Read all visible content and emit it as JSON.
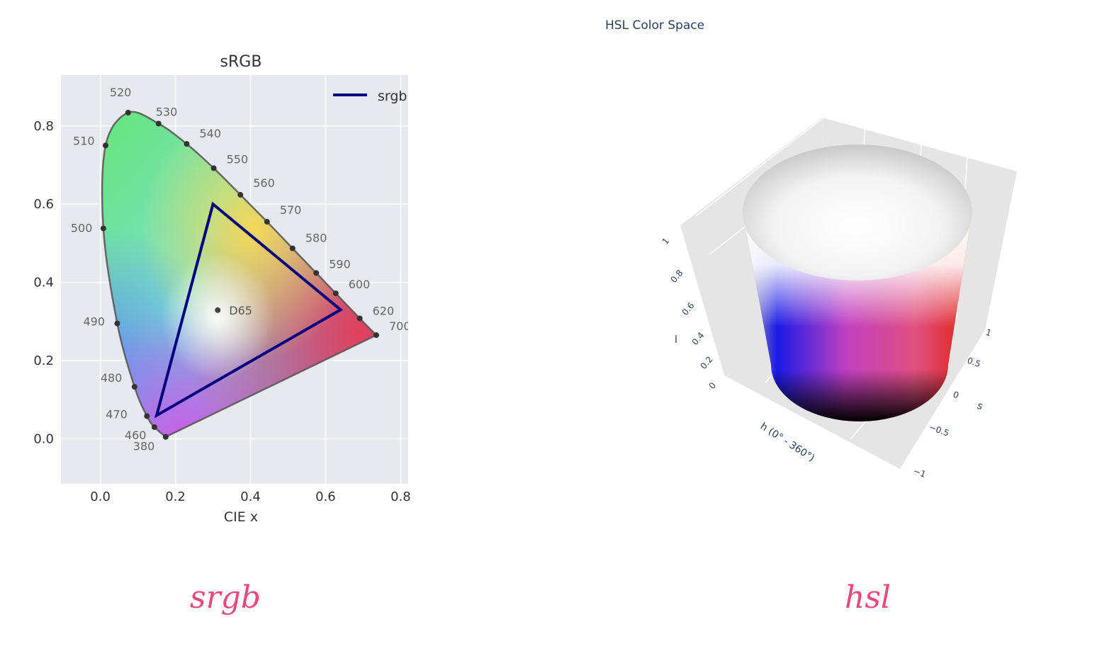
{
  "captions": {
    "left": "srgb",
    "right": "hsl"
  },
  "chart_data": [
    {
      "type": "line",
      "title": "sRGB",
      "xlabel": "CIE x",
      "ylabel": "",
      "xlim": [
        -0.105,
        0.82
      ],
      "ylim": [
        -0.115,
        0.93
      ],
      "xticks": [
        "0.0",
        "0.2",
        "0.4",
        "0.6",
        "0.8"
      ],
      "yticks": [
        "0.0",
        "0.2",
        "0.4",
        "0.6",
        "0.8"
      ],
      "grid": true,
      "legend": {
        "position": "top-right",
        "entries": [
          "srgb"
        ]
      },
      "spectral_locus": [
        {
          "label": "380",
          "x": 0.174,
          "y": 0.005
        },
        {
          "label": "460",
          "x": 0.144,
          "y": 0.03
        },
        {
          "label": "470",
          "x": 0.124,
          "y": 0.058
        },
        {
          "label": "480",
          "x": 0.091,
          "y": 0.133
        },
        {
          "label": "490",
          "x": 0.045,
          "y": 0.295
        },
        {
          "label": "500",
          "x": 0.008,
          "y": 0.538
        },
        {
          "label": "510",
          "x": 0.014,
          "y": 0.75
        },
        {
          "label": "520",
          "x": 0.074,
          "y": 0.834
        },
        {
          "label": "530",
          "x": 0.155,
          "y": 0.806
        },
        {
          "label": "540",
          "x": 0.23,
          "y": 0.754
        },
        {
          "label": "550",
          "x": 0.302,
          "y": 0.692
        },
        {
          "label": "560",
          "x": 0.373,
          "y": 0.624
        },
        {
          "label": "570",
          "x": 0.444,
          "y": 0.555
        },
        {
          "label": "580",
          "x": 0.512,
          "y": 0.487
        },
        {
          "label": "590",
          "x": 0.575,
          "y": 0.424
        },
        {
          "label": "600",
          "x": 0.627,
          "y": 0.372
        },
        {
          "label": "620",
          "x": 0.691,
          "y": 0.308
        },
        {
          "label": "700",
          "x": 0.735,
          "y": 0.265
        }
      ],
      "series": [
        {
          "name": "srgb",
          "color": "#000080",
          "x": [
            0.64,
            0.3,
            0.15,
            0.64
          ],
          "y": [
            0.33,
            0.6,
            0.06,
            0.33
          ]
        }
      ],
      "white_point": {
        "label": "D65",
        "x": 0.3127,
        "y": 0.329
      }
    },
    {
      "type": "surface",
      "title": "HSL Color Space",
      "axes": {
        "x": {
          "label": "h (0° - 360°)"
        },
        "y": {
          "label": "s",
          "ticks": [
            "1",
            "0.5",
            "0",
            "−0.5",
            "−1"
          ]
        },
        "z": {
          "label": "l",
          "ticks": [
            "1",
            "0.8",
            "0.6",
            "0.4",
            "0.2",
            "0"
          ]
        }
      }
    }
  ]
}
